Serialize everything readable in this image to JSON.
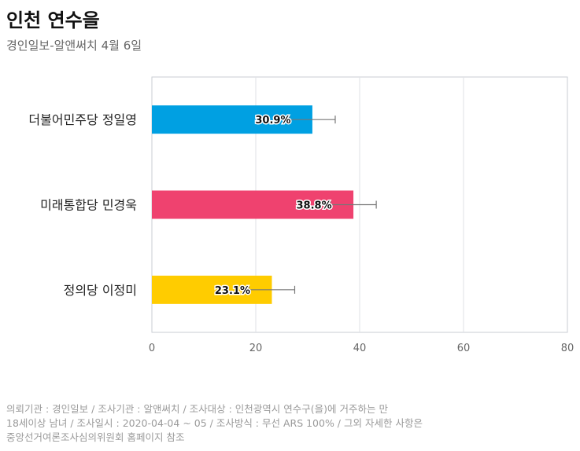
{
  "header": {
    "title": "인천 연수을",
    "subtitle": "경인일보-알앤써치 4월 6일"
  },
  "chart_data": {
    "type": "bar",
    "orientation": "horizontal",
    "categories": [
      "더불어민주당 정일영",
      "미래통합당 민경욱",
      "정의당 이정미"
    ],
    "values": [
      30.9,
      38.8,
      23.1
    ],
    "value_labels": [
      "30.9%",
      "38.8%",
      "23.1%"
    ],
    "error_bars": [
      [
        26.5,
        35.3
      ],
      [
        34.4,
        43.2
      ],
      [
        18.7,
        27.5
      ]
    ],
    "colors": [
      "#00a0e2",
      "#ef426f",
      "#ffcc00"
    ],
    "xlim": [
      0,
      80
    ],
    "xticks": [
      0,
      20,
      40,
      60,
      80
    ],
    "grid": true,
    "xlabel": "",
    "ylabel": ""
  },
  "footnote": {
    "line1": "의뢰기관 : 경인일보 / 조사기관 : 알앤써치 / 조사대상 : 인천광역시 연수구(을)에 거주하는 만",
    "line2": "18세이상 남녀 / 조사일시 : 2020-04-04 ~ 05 / 조사방식 : 무선 ARS 100% / 그외 자세한 사항은",
    "line3": "중앙선거여론조사심의위원회 홈페이지 참조"
  }
}
